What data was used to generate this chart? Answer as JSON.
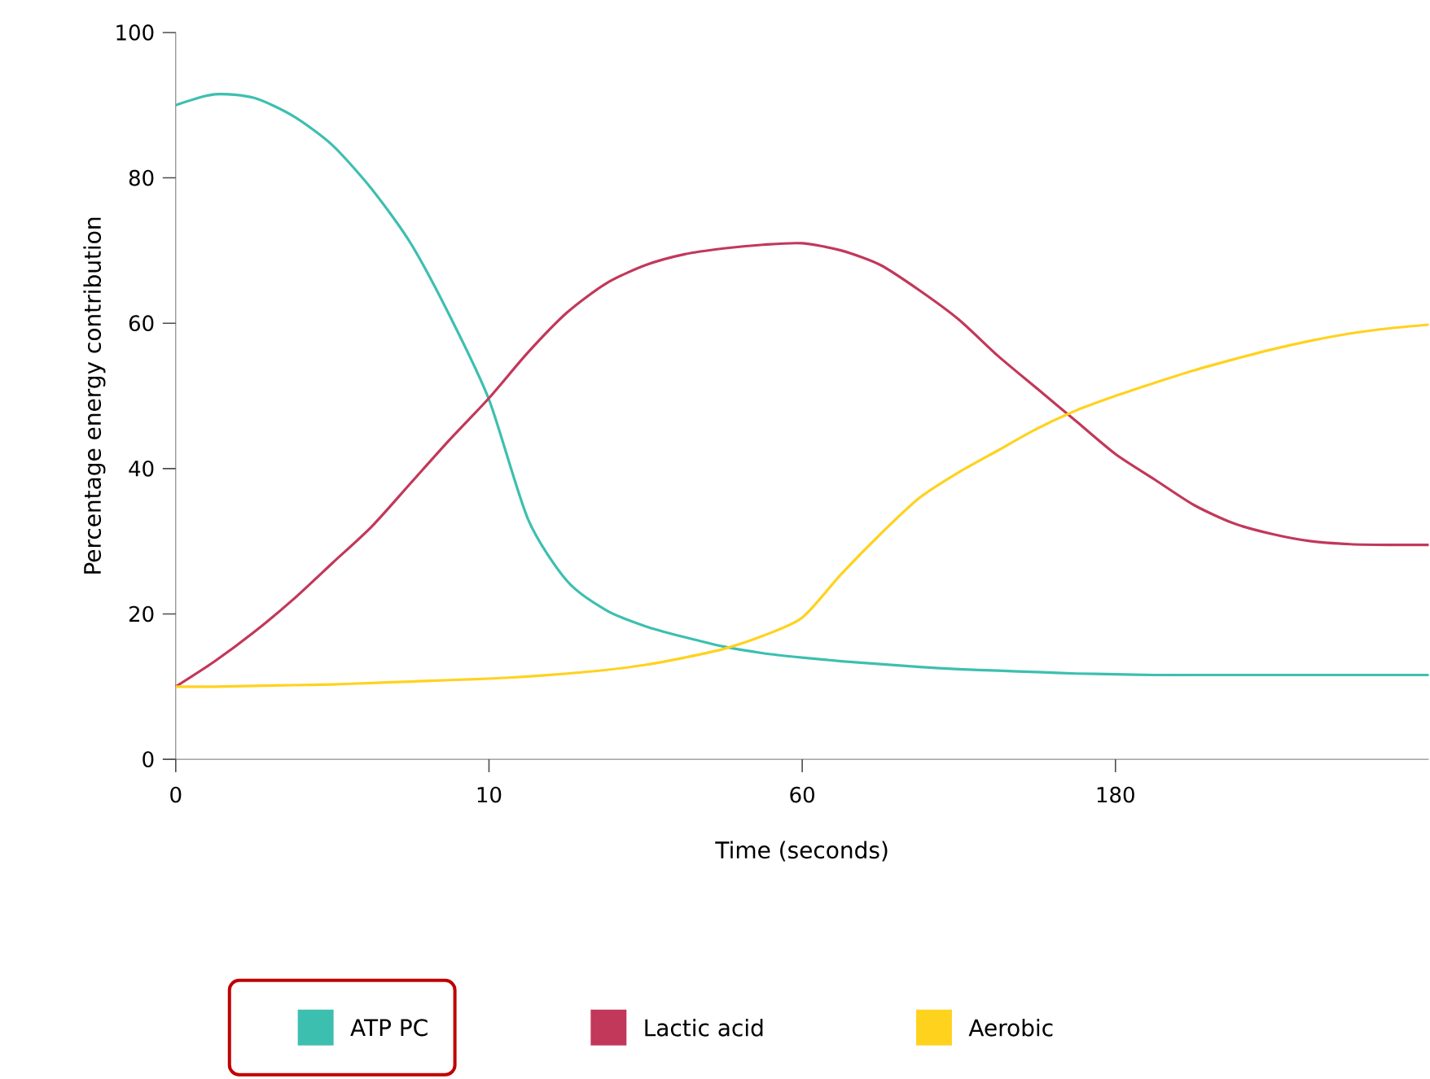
{
  "chart_data": {
    "type": "line",
    "xlabel": "Time (seconds)",
    "ylabel": "Percentage energy contribution",
    "categories": [
      "0",
      null,
      null,
      null,
      null,
      null,
      null,
      null,
      "10",
      null,
      null,
      null,
      null,
      null,
      null,
      null,
      "60",
      null,
      null,
      null,
      null,
      null,
      null,
      null,
      "180",
      null,
      null,
      null,
      null,
      null,
      null,
      null,
      null
    ],
    "ylim": [
      0,
      100
    ],
    "yticks": [
      0,
      20,
      40,
      60,
      80,
      100
    ],
    "grid": false,
    "legend": "bottom",
    "marker": "none",
    "line_style": "solid",
    "series": [
      {
        "name": "ATP PC",
        "color": "#3dbfb0",
        "values": [
          90,
          91.5,
          91,
          88.5,
          84.5,
          78.5,
          71,
          61,
          49.5,
          33,
          24.5,
          20.5,
          18.3,
          16.8,
          15.5,
          14.6,
          14,
          13.5,
          13.1,
          12.7,
          12.4,
          12.2,
          12,
          11.8,
          11.7,
          11.6,
          11.6,
          11.6,
          11.6,
          11.6,
          11.6,
          11.6,
          11.6
        ]
      },
      {
        "name": "Lactic acid",
        "color": "#c2385a",
        "values": [
          10,
          13.5,
          17.5,
          22,
          27,
          32,
          38,
          44,
          49.7,
          56,
          61.5,
          65.5,
          68,
          69.5,
          70.3,
          70.8,
          71,
          70,
          68,
          64.5,
          60.5,
          55.5,
          51,
          46.5,
          42,
          38.5,
          35,
          32.5,
          31,
          30,
          29.6,
          29.5,
          29.5
        ]
      },
      {
        "name": "Aerobic",
        "color": "#ffd21e",
        "values": [
          10,
          10,
          10.1,
          10.2,
          10.3,
          10.5,
          10.7,
          10.9,
          11.1,
          11.4,
          11.8,
          12.3,
          13,
          14,
          15.2,
          17,
          19.5,
          25.5,
          31,
          36,
          39.5,
          42.5,
          45.5,
          48,
          50,
          51.8,
          53.5,
          55,
          56.4,
          57.6,
          58.6,
          59.3,
          59.8
        ]
      }
    ]
  }
}
